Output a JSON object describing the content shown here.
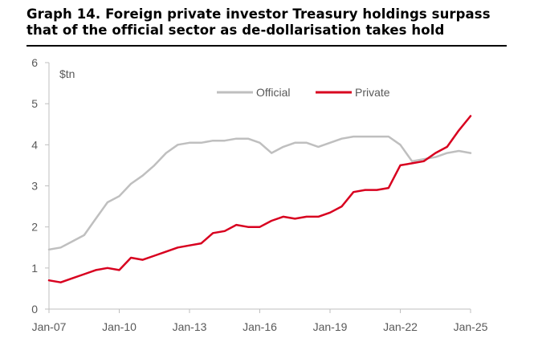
{
  "title_line1": "Graph 14. Foreign private investor Treasury holdings surpass",
  "title_line2": "that of the official sector as de-dollarisation takes hold",
  "chart_data": {
    "type": "line",
    "title": "Graph 14. Foreign private investor Treasury holdings surpass that of the official sector as de-dollarisation takes hold",
    "ylabel": "$tn",
    "ylim": [
      0,
      6
    ],
    "yticks": [
      "0",
      "1",
      "2",
      "3",
      "4",
      "5",
      "6"
    ],
    "xticks": [
      "Jan-07",
      "Jan-10",
      "Jan-13",
      "Jan-16",
      "Jan-19",
      "Jan-22",
      "Jan-25"
    ],
    "xlim": [
      "Jan-07",
      "Jan-25"
    ],
    "grid": false,
    "legend": "top",
    "series": [
      {
        "name": "Official",
        "color": "#bfbfbf",
        "points": [
          [
            "Jan-07",
            1.45
          ],
          [
            "Jul-07",
            1.5
          ],
          [
            "Jan-08",
            1.65
          ],
          [
            "Jul-08",
            1.8
          ],
          [
            "Jan-09",
            2.2
          ],
          [
            "Jul-09",
            2.6
          ],
          [
            "Jan-10",
            2.75
          ],
          [
            "Jul-10",
            3.05
          ],
          [
            "Jan-11",
            3.25
          ],
          [
            "Jul-11",
            3.5
          ],
          [
            "Jan-12",
            3.8
          ],
          [
            "Jul-12",
            4.0
          ],
          [
            "Jan-13",
            4.05
          ],
          [
            "Jul-13",
            4.05
          ],
          [
            "Jan-14",
            4.1
          ],
          [
            "Jul-14",
            4.1
          ],
          [
            "Jan-15",
            4.15
          ],
          [
            "Jul-15",
            4.15
          ],
          [
            "Jan-16",
            4.05
          ],
          [
            "Jul-16",
            3.8
          ],
          [
            "Jan-17",
            3.95
          ],
          [
            "Jul-17",
            4.05
          ],
          [
            "Jan-18",
            4.05
          ],
          [
            "Jul-18",
            3.95
          ],
          [
            "Jan-19",
            4.05
          ],
          [
            "Jul-19",
            4.15
          ],
          [
            "Jan-20",
            4.2
          ],
          [
            "Jul-20",
            4.2
          ],
          [
            "Jan-21",
            4.2
          ],
          [
            "Jul-21",
            4.2
          ],
          [
            "Jan-22",
            4.0
          ],
          [
            "Jul-22",
            3.6
          ],
          [
            "Jan-23",
            3.65
          ],
          [
            "Jul-23",
            3.7
          ],
          [
            "Jan-24",
            3.8
          ],
          [
            "Jul-24",
            3.85
          ],
          [
            "Jan-25",
            3.8
          ]
        ]
      },
      {
        "name": "Private",
        "color": "#d8001f",
        "points": [
          [
            "Jan-07",
            0.7
          ],
          [
            "Jul-07",
            0.65
          ],
          [
            "Jan-08",
            0.75
          ],
          [
            "Jul-08",
            0.85
          ],
          [
            "Jan-09",
            0.95
          ],
          [
            "Jul-09",
            1.0
          ],
          [
            "Jan-10",
            0.95
          ],
          [
            "Jul-10",
            1.25
          ],
          [
            "Jan-11",
            1.2
          ],
          [
            "Jul-11",
            1.3
          ],
          [
            "Jan-12",
            1.4
          ],
          [
            "Jul-12",
            1.5
          ],
          [
            "Jan-13",
            1.55
          ],
          [
            "Jul-13",
            1.6
          ],
          [
            "Jan-14",
            1.85
          ],
          [
            "Jul-14",
            1.9
          ],
          [
            "Jan-15",
            2.05
          ],
          [
            "Jul-15",
            2.0
          ],
          [
            "Jan-16",
            2.0
          ],
          [
            "Jul-16",
            2.15
          ],
          [
            "Jan-17",
            2.25
          ],
          [
            "Jul-17",
            2.2
          ],
          [
            "Jan-18",
            2.25
          ],
          [
            "Jul-18",
            2.25
          ],
          [
            "Jan-19",
            2.35
          ],
          [
            "Jul-19",
            2.5
          ],
          [
            "Jan-20",
            2.85
          ],
          [
            "Jul-20",
            2.9
          ],
          [
            "Jan-21",
            2.9
          ],
          [
            "Jul-21",
            2.95
          ],
          [
            "Jan-22",
            3.5
          ],
          [
            "Jul-22",
            3.55
          ],
          [
            "Jan-23",
            3.6
          ],
          [
            "Jul-23",
            3.8
          ],
          [
            "Jan-24",
            3.95
          ],
          [
            "Jul-24",
            4.35
          ],
          [
            "Jan-25",
            4.7
          ]
        ]
      }
    ]
  }
}
